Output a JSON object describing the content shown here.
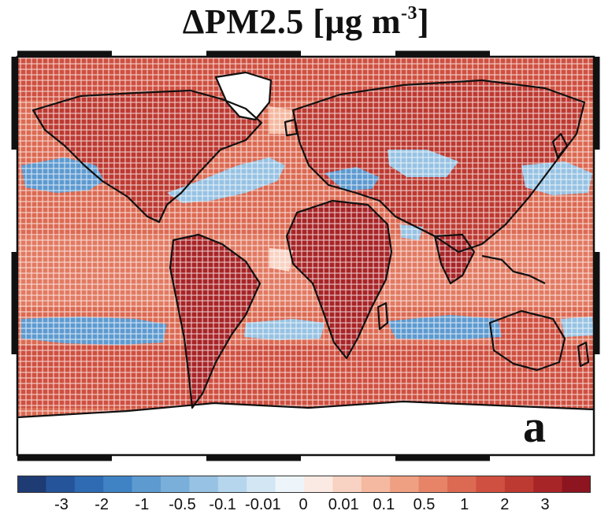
{
  "title": {
    "main": "ΔPM2.5 [μg m",
    "exponent": "-3",
    "close": "]"
  },
  "panel_label": "a",
  "colorbar": {
    "colors": [
      "#1f3b73",
      "#25549b",
      "#2f6bb3",
      "#3f83c4",
      "#5d9ad0",
      "#7aafda",
      "#97c2e3",
      "#b5d6ec",
      "#d2e6f3",
      "#eef5fa",
      "#fbeae3",
      "#f8d2c2",
      "#f4b9a0",
      "#ef9f82",
      "#e78468",
      "#dc6a52",
      "#cf5040",
      "#bd3a32",
      "#a82527",
      "#8c1520"
    ],
    "tick_labels": [
      "-3",
      "-2",
      "-1",
      "-0.5",
      "-0.1",
      "-0.01",
      "0",
      "0.01",
      "0.1",
      "0.5",
      "1",
      "2",
      "3"
    ]
  },
  "map": {
    "projection": "equirectangular-like global",
    "field_color_default": "#dc6a52",
    "field_color_strong": "#bd3a32",
    "land_color_strong": "#a82527",
    "negative_color": "#5d9ad0",
    "light_negative_color": "#b5d6ec",
    "near_zero_color": "#ffffff",
    "coastline_color": "#111111"
  }
}
